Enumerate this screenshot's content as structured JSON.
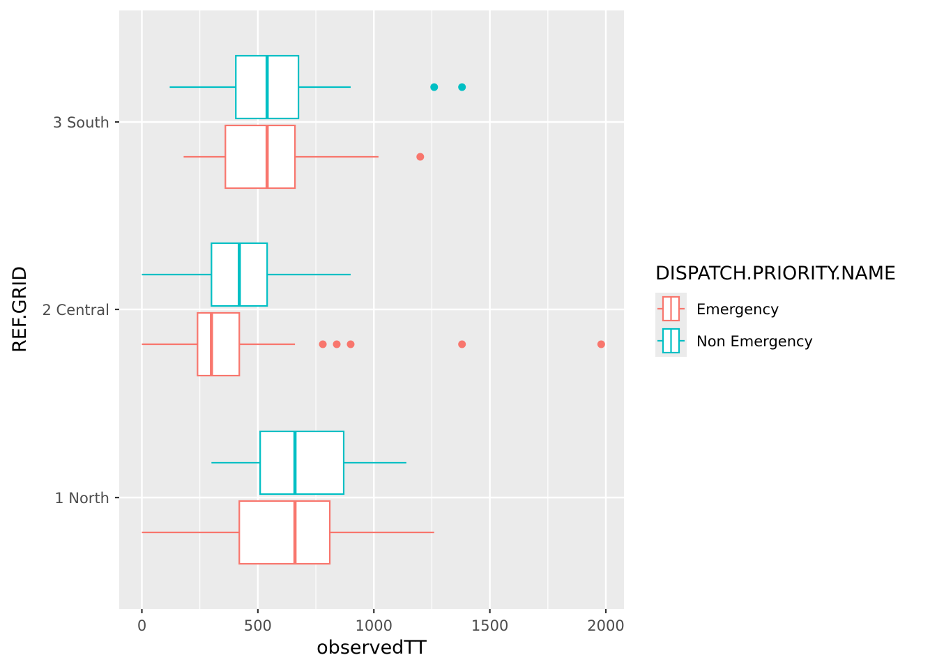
{
  "chart_data": {
    "type": "boxplot",
    "orientation": "horizontal",
    "title": "",
    "xlabel": "observedTT",
    "ylabel": "REF.GRID",
    "xlim": [
      -100,
      2080
    ],
    "x_ticks": [
      0,
      500,
      1000,
      1500,
      2000
    ],
    "x_tick_labels": [
      "0",
      "500",
      "1000",
      "1500",
      "2000"
    ],
    "categories": [
      "1 North",
      "2 Central",
      "3 South"
    ],
    "legend": {
      "title": "DISPATCH.PRIORITY.NAME",
      "placement": "right"
    },
    "grid": true,
    "series": [
      {
        "name": "Emergency",
        "color": "#F8766D",
        "boxes": [
          {
            "category": "1 North",
            "whisker_low": 0,
            "q1": 420,
            "median": 660,
            "q3": 810,
            "whisker_high": 1260,
            "outliers": []
          },
          {
            "category": "2 Central",
            "whisker_low": 0,
            "q1": 240,
            "median": 300,
            "q3": 420,
            "whisker_high": 660,
            "outliers": [
              780,
              840,
              900,
              1380,
              1980
            ]
          },
          {
            "category": "3 South",
            "whisker_low": 180,
            "q1": 360,
            "median": 540,
            "q3": 660,
            "whisker_high": 1020,
            "outliers": [
              1200
            ]
          }
        ]
      },
      {
        "name": "Non Emergency",
        "color": "#00BFC4",
        "boxes": [
          {
            "category": "1 North",
            "whisker_low": 300,
            "q1": 510,
            "median": 660,
            "q3": 870,
            "whisker_high": 1140,
            "outliers": []
          },
          {
            "category": "2 Central",
            "whisker_low": 0,
            "q1": 300,
            "median": 420,
            "q3": 540,
            "whisker_high": 900,
            "outliers": []
          },
          {
            "category": "3 South",
            "whisker_low": 120,
            "q1": 405,
            "median": 540,
            "q3": 675,
            "whisker_high": 900,
            "outliers": [
              1260,
              1380
            ]
          }
        ]
      }
    ],
    "colors": {
      "panel_background": "#EBEBEB",
      "grid": "#FFFFFF",
      "box_fill": "#FFFFFF"
    }
  }
}
